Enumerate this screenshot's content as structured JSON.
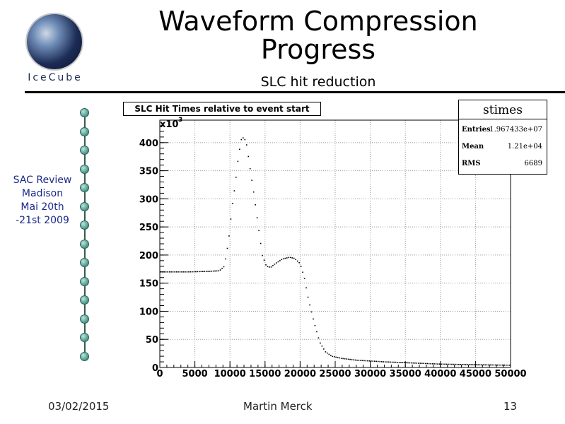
{
  "header": {
    "title_line1": "Waveform Compression",
    "title_line2": "Progress",
    "subtitle": "SLC hit reduction",
    "logo_text": "IceCube"
  },
  "sidebar": {
    "note_lines": [
      "SAC Review",
      "Madison",
      "Mai 20th",
      "-21st  2009"
    ]
  },
  "footer": {
    "date": "03/02/2015",
    "author": "Martin Merck",
    "page": "13"
  },
  "colors": {
    "dom_fill": "#5aa89a",
    "note_text": "#1a2a88"
  },
  "chart_data": {
    "type": "scatter",
    "title": "SLC Hit Times relative to event start",
    "xlabel": "",
    "ylabel": "",
    "y_multiplier_label": "x10",
    "y_multiplier_exp": "3",
    "xlim": [
      0,
      50000
    ],
    "ylim": [
      0,
      440
    ],
    "grid": true,
    "x_ticks": [
      0,
      5000,
      10000,
      15000,
      20000,
      25000,
      30000,
      35000,
      40000,
      45000,
      50000
    ],
    "x_tick_labels": [
      "0",
      "5000",
      "10000",
      "15000",
      "20000",
      "25000",
      "30000",
      "35000",
      "40000",
      "45000",
      "50000"
    ],
    "y_ticks": [
      0,
      50,
      100,
      150,
      200,
      250,
      300,
      350,
      400
    ],
    "y_tick_labels": [
      "0",
      "50",
      "100",
      "150",
      "200",
      "250",
      "300",
      "350",
      "400"
    ],
    "stats": {
      "name": "stimes",
      "rows": [
        {
          "key": "Entries",
          "value": "1.967433e+07"
        },
        {
          "key": "Mean",
          "value": "1.21e+04"
        },
        {
          "key": "RMS",
          "value": "6689"
        }
      ]
    },
    "anchor_points": [
      [
        0,
        170
      ],
      [
        4000,
        170
      ],
      [
        7000,
        171
      ],
      [
        8500,
        172
      ],
      [
        9200,
        180
      ],
      [
        9800,
        225
      ],
      [
        10300,
        285
      ],
      [
        10800,
        330
      ],
      [
        11200,
        375
      ],
      [
        11600,
        405
      ],
      [
        12000,
        410
      ],
      [
        12400,
        395
      ],
      [
        12800,
        360
      ],
      [
        13400,
        310
      ],
      [
        14000,
        255
      ],
      [
        14600,
        200
      ],
      [
        15200,
        180
      ],
      [
        15800,
        178
      ],
      [
        16500,
        185
      ],
      [
        17500,
        193
      ],
      [
        18500,
        196
      ],
      [
        19200,
        194
      ],
      [
        20000,
        185
      ],
      [
        20600,
        160
      ],
      [
        21200,
        120
      ],
      [
        22000,
        80
      ],
      [
        22800,
        45
      ],
      [
        23600,
        28
      ],
      [
        24500,
        20
      ],
      [
        26000,
        16
      ],
      [
        28000,
        13
      ],
      [
        32000,
        10
      ],
      [
        36000,
        8
      ],
      [
        40000,
        6
      ],
      [
        44000,
        5
      ],
      [
        50000,
        4
      ]
    ],
    "bin_width": 250
  }
}
